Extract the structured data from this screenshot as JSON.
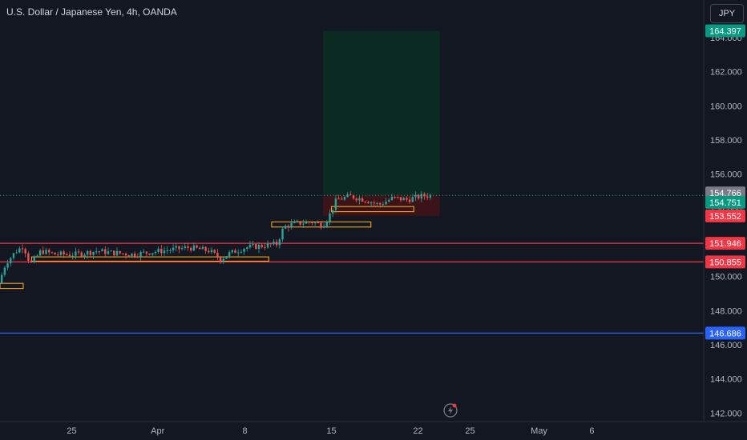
{
  "header": {
    "title": "U.S. Dollar / Japanese Yen, 4h, OANDA",
    "currency_button": "JPY"
  },
  "colors": {
    "background": "#131722",
    "up": "#26a69a",
    "down": "#ef5350",
    "level_line": "#f23645",
    "support_line": "#2962ff",
    "box_outline": "#f7a21b",
    "target_zone": "#0a2a22",
    "stop_zone": "#3a1418"
  },
  "chart_data": {
    "type": "candlestick",
    "ylim": [
      141.5,
      166.2
    ],
    "y_ticks": [
      "142.000",
      "144.000",
      "146.000",
      "148.000",
      "150.000",
      "152.000",
      "154.000",
      "156.000",
      "158.000",
      "160.000",
      "162.000",
      "164.000"
    ],
    "x_ticks": [
      {
        "label": "25",
        "pos": 0.102
      },
      {
        "label": "Apr",
        "pos": 0.224
      },
      {
        "label": "8",
        "pos": 0.348
      },
      {
        "label": "15",
        "pos": 0.471
      },
      {
        "label": "22",
        "pos": 0.594
      },
      {
        "label": "25",
        "pos": 0.668
      },
      {
        "label": "May",
        "pos": 0.766
      },
      {
        "label": "6",
        "pos": 0.841
      }
    ],
    "data_end": 0.61,
    "price_path": [
      [
        0.0,
        149.6
      ],
      [
        0.01,
        150.8
      ],
      [
        0.025,
        151.5
      ],
      [
        0.035,
        151.8
      ],
      [
        0.045,
        150.7
      ],
      [
        0.06,
        151.5
      ],
      [
        0.08,
        151.3
      ],
      [
        0.11,
        151.3
      ],
      [
        0.14,
        151.5
      ],
      [
        0.16,
        151.4
      ],
      [
        0.19,
        151.3
      ],
      [
        0.23,
        151.5
      ],
      [
        0.27,
        151.7
      ],
      [
        0.3,
        151.5
      ],
      [
        0.315,
        151.0
      ],
      [
        0.325,
        151.3
      ],
      [
        0.35,
        151.7
      ],
      [
        0.375,
        151.8
      ],
      [
        0.395,
        151.9
      ],
      [
        0.405,
        152.9
      ],
      [
        0.42,
        153.1
      ],
      [
        0.445,
        153.2
      ],
      [
        0.46,
        153.0
      ],
      [
        0.47,
        153.6
      ],
      [
        0.48,
        154.5
      ],
      [
        0.5,
        154.7
      ],
      [
        0.52,
        154.5
      ],
      [
        0.54,
        154.2
      ],
      [
        0.56,
        154.6
      ],
      [
        0.58,
        154.5
      ],
      [
        0.6,
        154.7
      ],
      [
        0.61,
        154.75
      ]
    ],
    "levels": [
      {
        "price": 151.946,
        "label": "151.946",
        "color": "#f23645"
      },
      {
        "price": 150.855,
        "label": "150.855",
        "color": "#f23645"
      },
      {
        "price": 146.686,
        "label": "146.686",
        "color": "#2962ff"
      }
    ],
    "position": {
      "x_start": 0.459,
      "x_end": 0.625,
      "entry": 154.751,
      "target": 164.397,
      "stop": 153.552
    },
    "boxes": [
      {
        "x0": 0.0,
        "x1": 0.033,
        "p0": 149.3,
        "p1": 149.6
      },
      {
        "x0": 0.045,
        "x1": 0.382,
        "p0": 150.9,
        "p1": 151.15
      },
      {
        "x0": 0.386,
        "x1": 0.527,
        "p0": 152.9,
        "p1": 153.2
      },
      {
        "x0": 0.471,
        "x1": 0.588,
        "p0": 153.8,
        "p1": 154.1
      }
    ],
    "price_badges": [
      {
        "label": "164.397",
        "price": 164.397,
        "color": "#089981"
      },
      {
        "label": "154.766",
        "price": 154.9,
        "color": "#787b86"
      },
      {
        "label": "154.751",
        "price": 154.35,
        "color": "#089981"
      },
      {
        "label": "153.552",
        "price": 153.55,
        "color": "#f23645"
      },
      {
        "label": "151.946",
        "price": 151.946,
        "color": "#f23645"
      },
      {
        "label": "150.855",
        "price": 150.855,
        "color": "#f23645"
      },
      {
        "label": "146.686",
        "price": 146.686,
        "color": "#2962ff"
      }
    ]
  }
}
